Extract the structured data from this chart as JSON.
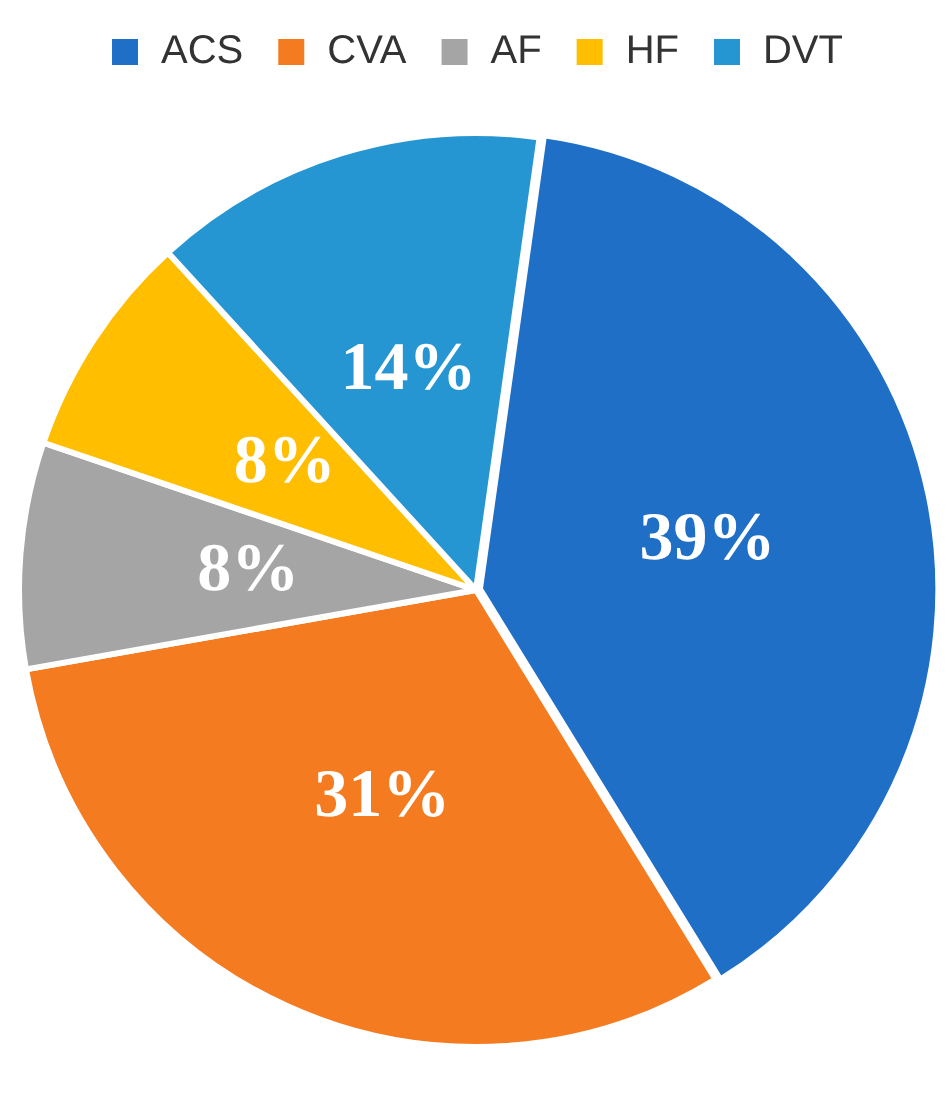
{
  "chart_data": {
    "type": "pie",
    "categories": [
      "ACS",
      "CVA",
      "AF",
      "HF",
      "DVT"
    ],
    "values": [
      39,
      31,
      8,
      8,
      14
    ],
    "colors": [
      "#1f6fc6",
      "#f47b20",
      "#a5a5a5",
      "#ffbf00",
      "#2596d2"
    ],
    "value_labels": [
      "39%",
      "31%",
      "8%",
      "8%",
      "14%"
    ],
    "legend": "top"
  }
}
